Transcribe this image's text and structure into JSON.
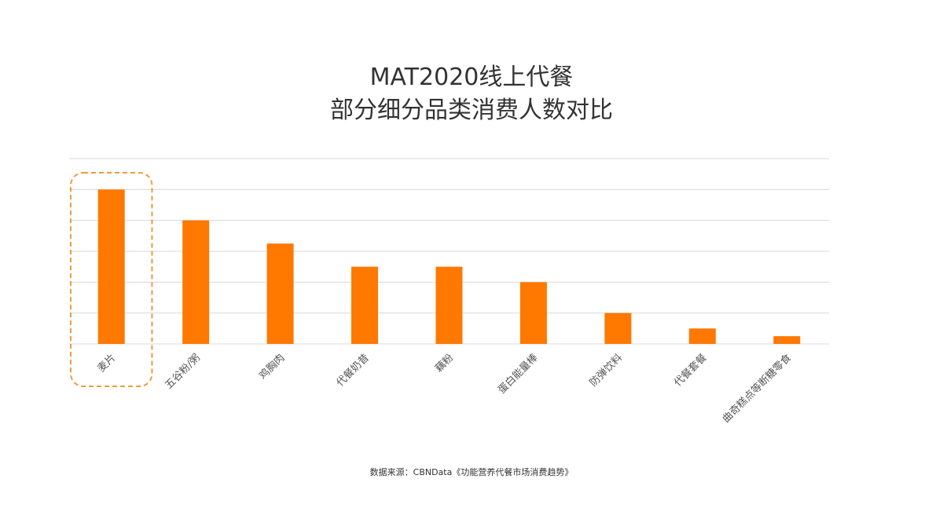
{
  "chart_data": {
    "type": "bar",
    "title": "MAT2020线上代餐",
    "subtitle": "部分细分品类消费人数对比",
    "categories": [
      "麦片",
      "五谷粉/粥",
      "鸡胸肉",
      "代餐奶昔",
      "藕粉",
      "蛋白能量棒",
      "防弹饮料",
      "代餐套餐",
      "曲奇糕点等断糖零食"
    ],
    "values": [
      10,
      8,
      6.5,
      5,
      5,
      4,
      2,
      1,
      0.5
    ],
    "ylim": [
      0,
      12
    ],
    "grid": true,
    "bar_color": "#FF7800",
    "highlight": {
      "category": "麦片",
      "color": "#F39B3A",
      "style": "dashed"
    },
    "source": "数据来源：CBNData《功能营养代餐市场消费趋势》"
  }
}
